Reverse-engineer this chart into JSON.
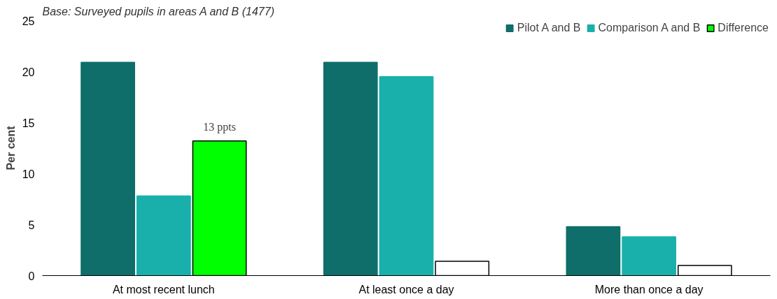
{
  "chart_data": {
    "type": "bar",
    "subtitle": "Base: Surveyed pupils in areas A and B (1477)",
    "ylabel": "Per cent",
    "categories": [
      "At most recent lunch",
      "At least once a day",
      "More than once a day"
    ],
    "series": [
      {
        "name": "Pilot A and B",
        "color": "#0f6e69",
        "values": [
          20.9,
          20.9,
          4.8
        ]
      },
      {
        "name": "Comparison A and B",
        "color": "#19b0ac",
        "values": [
          7.8,
          19.5,
          3.8
        ]
      },
      {
        "name": "Difference",
        "color": "#ffffff",
        "colors": [
          "#00ff00",
          "#ffffff",
          "#ffffff"
        ],
        "values": [
          13.2,
          1.4,
          1.0
        ],
        "value_labels": [
          "13 ppts",
          null,
          null
        ]
      }
    ],
    "ylim": [
      0,
      25
    ],
    "yticks": [
      0,
      5,
      10,
      15,
      20,
      25
    ],
    "grid": false,
    "legend": "top right"
  }
}
